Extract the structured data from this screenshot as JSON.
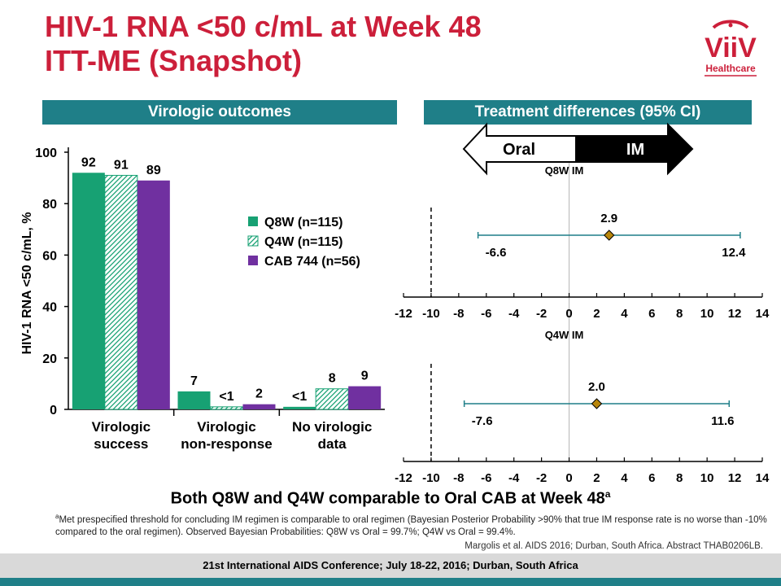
{
  "slide": {
    "title_line1": "HIV-1 RNA <50 c/mL at Week 48",
    "title_line2": "ITT-ME (Snapshot)",
    "logo_text": "ViiV",
    "logo_subtext": "Healthcare",
    "conclusion": "Both Q8W and Q4W comparable to Oral CAB at Week 48",
    "conclusion_sup": "a",
    "footnote_sup": "a",
    "footnote": "Met prespecified threshold for concluding IM regimen is comparable to oral regimen (Bayesian Posterior Probability >90% that true IM response rate is no worse than -10% compared to the oral regimen). Observed Bayesian Probabilities: Q8W vs Oral = 99.7%; Q4W vs Oral = 99.4%.",
    "reference": "Margolis et al. AIDS 2016; Durban, South Africa. Abstract THAB0206LB.",
    "footer": "21st International AIDS Conference; July 18-22, 2016; Durban, South Africa"
  },
  "colors": {
    "title": "#cc1f3a",
    "banner": "#1f7f88",
    "q8w": "#17a173",
    "q4w": "#ffffff",
    "q4w_hatch": "#17a173",
    "cab744": "#7030a0",
    "ci_line": "#1f7f88",
    "diamond": "#b8860b",
    "footer_band": "#d9d9d9",
    "footer_stripe": "#1f7f88"
  },
  "chart_data": [
    {
      "type": "bar",
      "banner": "Virologic outcomes",
      "ylabel": "HIV-1 RNA <50 c/mL, %",
      "ylim": [
        0,
        100
      ],
      "yticks": [
        "0",
        "20",
        "40",
        "60",
        "80",
        "100"
      ],
      "categories": [
        [
          "Virologic",
          "success"
        ],
        [
          "Virologic",
          "non-response"
        ],
        [
          "No virologic",
          "data"
        ]
      ],
      "series": [
        {
          "name": "Q8W (n=115)",
          "values": [
            92,
            7,
            1
          ],
          "labels": [
            "92",
            "7",
            "<1"
          ]
        },
        {
          "name": "Q4W (n=115)",
          "values": [
            91,
            1,
            8
          ],
          "labels": [
            "91",
            "<1",
            "8"
          ]
        },
        {
          "name": "CAB 744 (n=56)",
          "values": [
            89,
            2,
            9
          ],
          "labels": [
            "89",
            "2",
            "9"
          ]
        }
      ],
      "legend_position": "right"
    },
    {
      "type": "forest",
      "banner": "Treatment differences (95% CI)",
      "arrow_left": "Oral",
      "arrow_right": "IM",
      "xlim": [
        -12,
        14
      ],
      "xticks": [
        "-12",
        "-10",
        "-8",
        "-6",
        "-4",
        "-2",
        "0",
        "2",
        "4",
        "6",
        "8",
        "10",
        "12",
        "14"
      ],
      "threshold": -10,
      "panels": [
        {
          "label": "Q8W IM",
          "estimate": 2.9,
          "lower": -6.6,
          "upper": 12.4,
          "estimate_label": "2.9",
          "lower_label": "-6.6",
          "upper_label": "12.4"
        },
        {
          "label": "Q4W IM",
          "estimate": 2.0,
          "lower": -7.6,
          "upper": 11.6,
          "estimate_label": "2.0",
          "lower_label": "-7.6",
          "upper_label": "11.6"
        }
      ]
    }
  ]
}
